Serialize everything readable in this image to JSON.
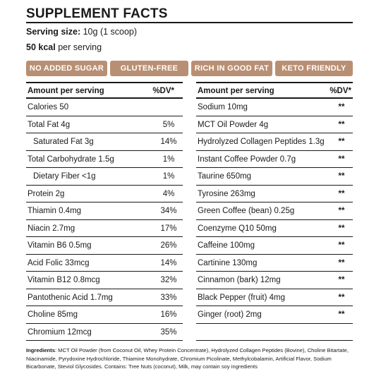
{
  "header": {
    "title": "SUPPLEMENT FACTS",
    "serving_label": "Serving size:",
    "serving_value": "10g (1 scoop)",
    "kcal_bold": "50 kcal",
    "kcal_rest": "per serving"
  },
  "badges": [
    "NO ADDED SUGAR",
    "GLUTEN-FREE",
    "RICH IN GOOD FAT",
    "KETO FRIENDLY"
  ],
  "colors": {
    "badge_bg": "#b98f73",
    "badge_text": "#ffffff",
    "text": "#1a1a1a"
  },
  "left_table": {
    "header_label": "Amount per serving",
    "header_dv": "%DV*",
    "rows": [
      {
        "label": "Calories 50",
        "dv": ""
      },
      {
        "label": "Total Fat 4g",
        "dv": "5%"
      },
      {
        "label": "Saturated Fat 3g",
        "dv": "14%"
      },
      {
        "label": "Total Carbohydrate 1.5g",
        "dv": "1%"
      },
      {
        "label": "Dietary Fiber <1g",
        "dv": "1%"
      },
      {
        "label": "Protein 2g",
        "dv": "4%"
      },
      {
        "label": "Thiamin 0.4mg",
        "dv": "34%"
      },
      {
        "label": "Niacin 2.7mg",
        "dv": "17%"
      },
      {
        "label": "Vitamin B6 0.5mg",
        "dv": "26%"
      },
      {
        "label": "Acid Folic 33mcg",
        "dv": "14%"
      },
      {
        "label": "Vitamin B12 0.8mcg",
        "dv": "32%"
      },
      {
        "label": "Pantothenic Acid 1.7mg",
        "dv": "33%"
      },
      {
        "label": "Choline 85mg",
        "dv": "16%"
      },
      {
        "label": "Chromium 12mcg",
        "dv": "35%"
      }
    ]
  },
  "right_table": {
    "header_label": "Amount per serving",
    "header_dv": "%DV*",
    "rows": [
      {
        "label": "Sodium 10mg",
        "dv": "**"
      },
      {
        "label": "MCT Oil Powder 4g",
        "dv": "**"
      },
      {
        "label": "Hydrolyzed Collagen Peptides 1.3g",
        "dv": "**"
      },
      {
        "label": "Instant Coffee Powder 0.7g",
        "dv": "**"
      },
      {
        "label": "Taurine 650mg",
        "dv": "**"
      },
      {
        "label": "Tyrosine 263mg",
        "dv": "**"
      },
      {
        "label": "Green Coffee (bean) 0.25g",
        "dv": "**"
      },
      {
        "label": "Coenzyme Q10 50mg",
        "dv": "**"
      },
      {
        "label": "Caffeine 100mg",
        "dv": "**"
      },
      {
        "label": "Cartinine 130mg",
        "dv": "**"
      },
      {
        "label": "Cinnamon (bark) 12mg",
        "dv": "**"
      },
      {
        "label": "Black Pepper (fruit) 4mg",
        "dv": "**"
      },
      {
        "label": "Ginger (root) 2mg",
        "dv": "**"
      },
      {
        "label": "",
        "dv": ""
      }
    ]
  },
  "ingredients": {
    "label": "Ingredients",
    "text": ": MCT Oil Powder (from Coconut Oil, Whey Protein Concentrate), Hydrolyzed Collagen Peptides (Bovine), Choline Bitartate, Niacinamide, Pyrydoxine Hydrochloride, Thiamine Monohydrate, Chromium Picolinate, Methylcobalamin, Artificial Flavor, Sodium Bicarbonate, Steviol Glycosides. Contains: Tree Nuts (coconut), Milk, may contain soy ingredients"
  }
}
